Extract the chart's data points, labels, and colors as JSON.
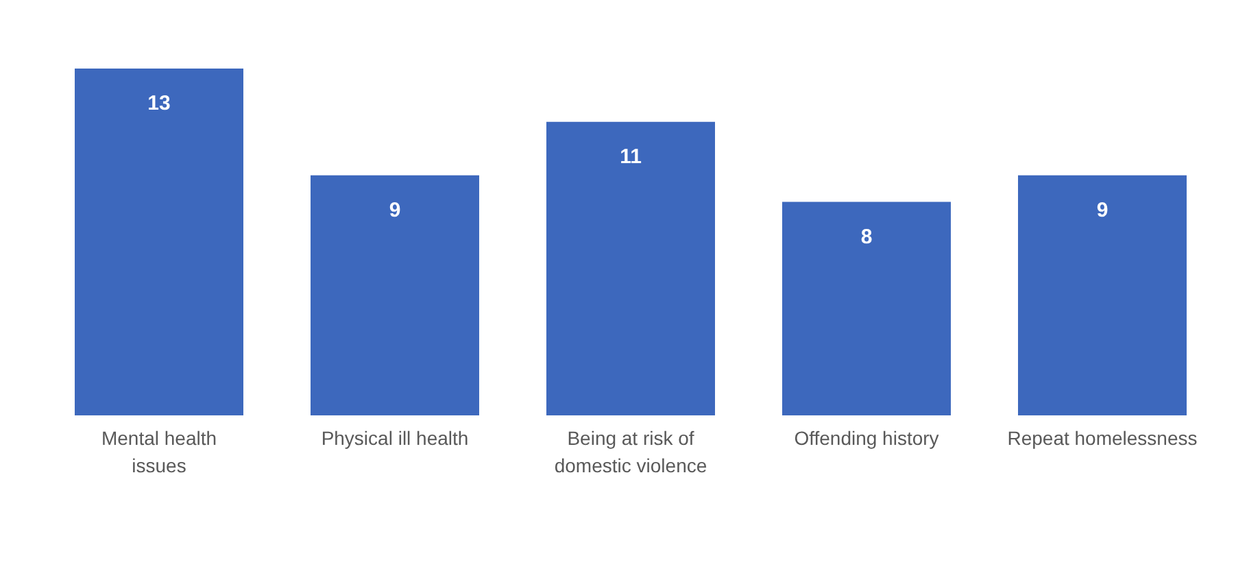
{
  "chart_data": {
    "type": "bar",
    "categories": [
      "Mental health issues",
      "Physical ill health",
      "Being at risk of domestic violence",
      "Offending history",
      "Repeat homelessness"
    ],
    "values": [
      13,
      9,
      11,
      8,
      9
    ],
    "color": "#3d68bd",
    "data_labels": true
  }
}
